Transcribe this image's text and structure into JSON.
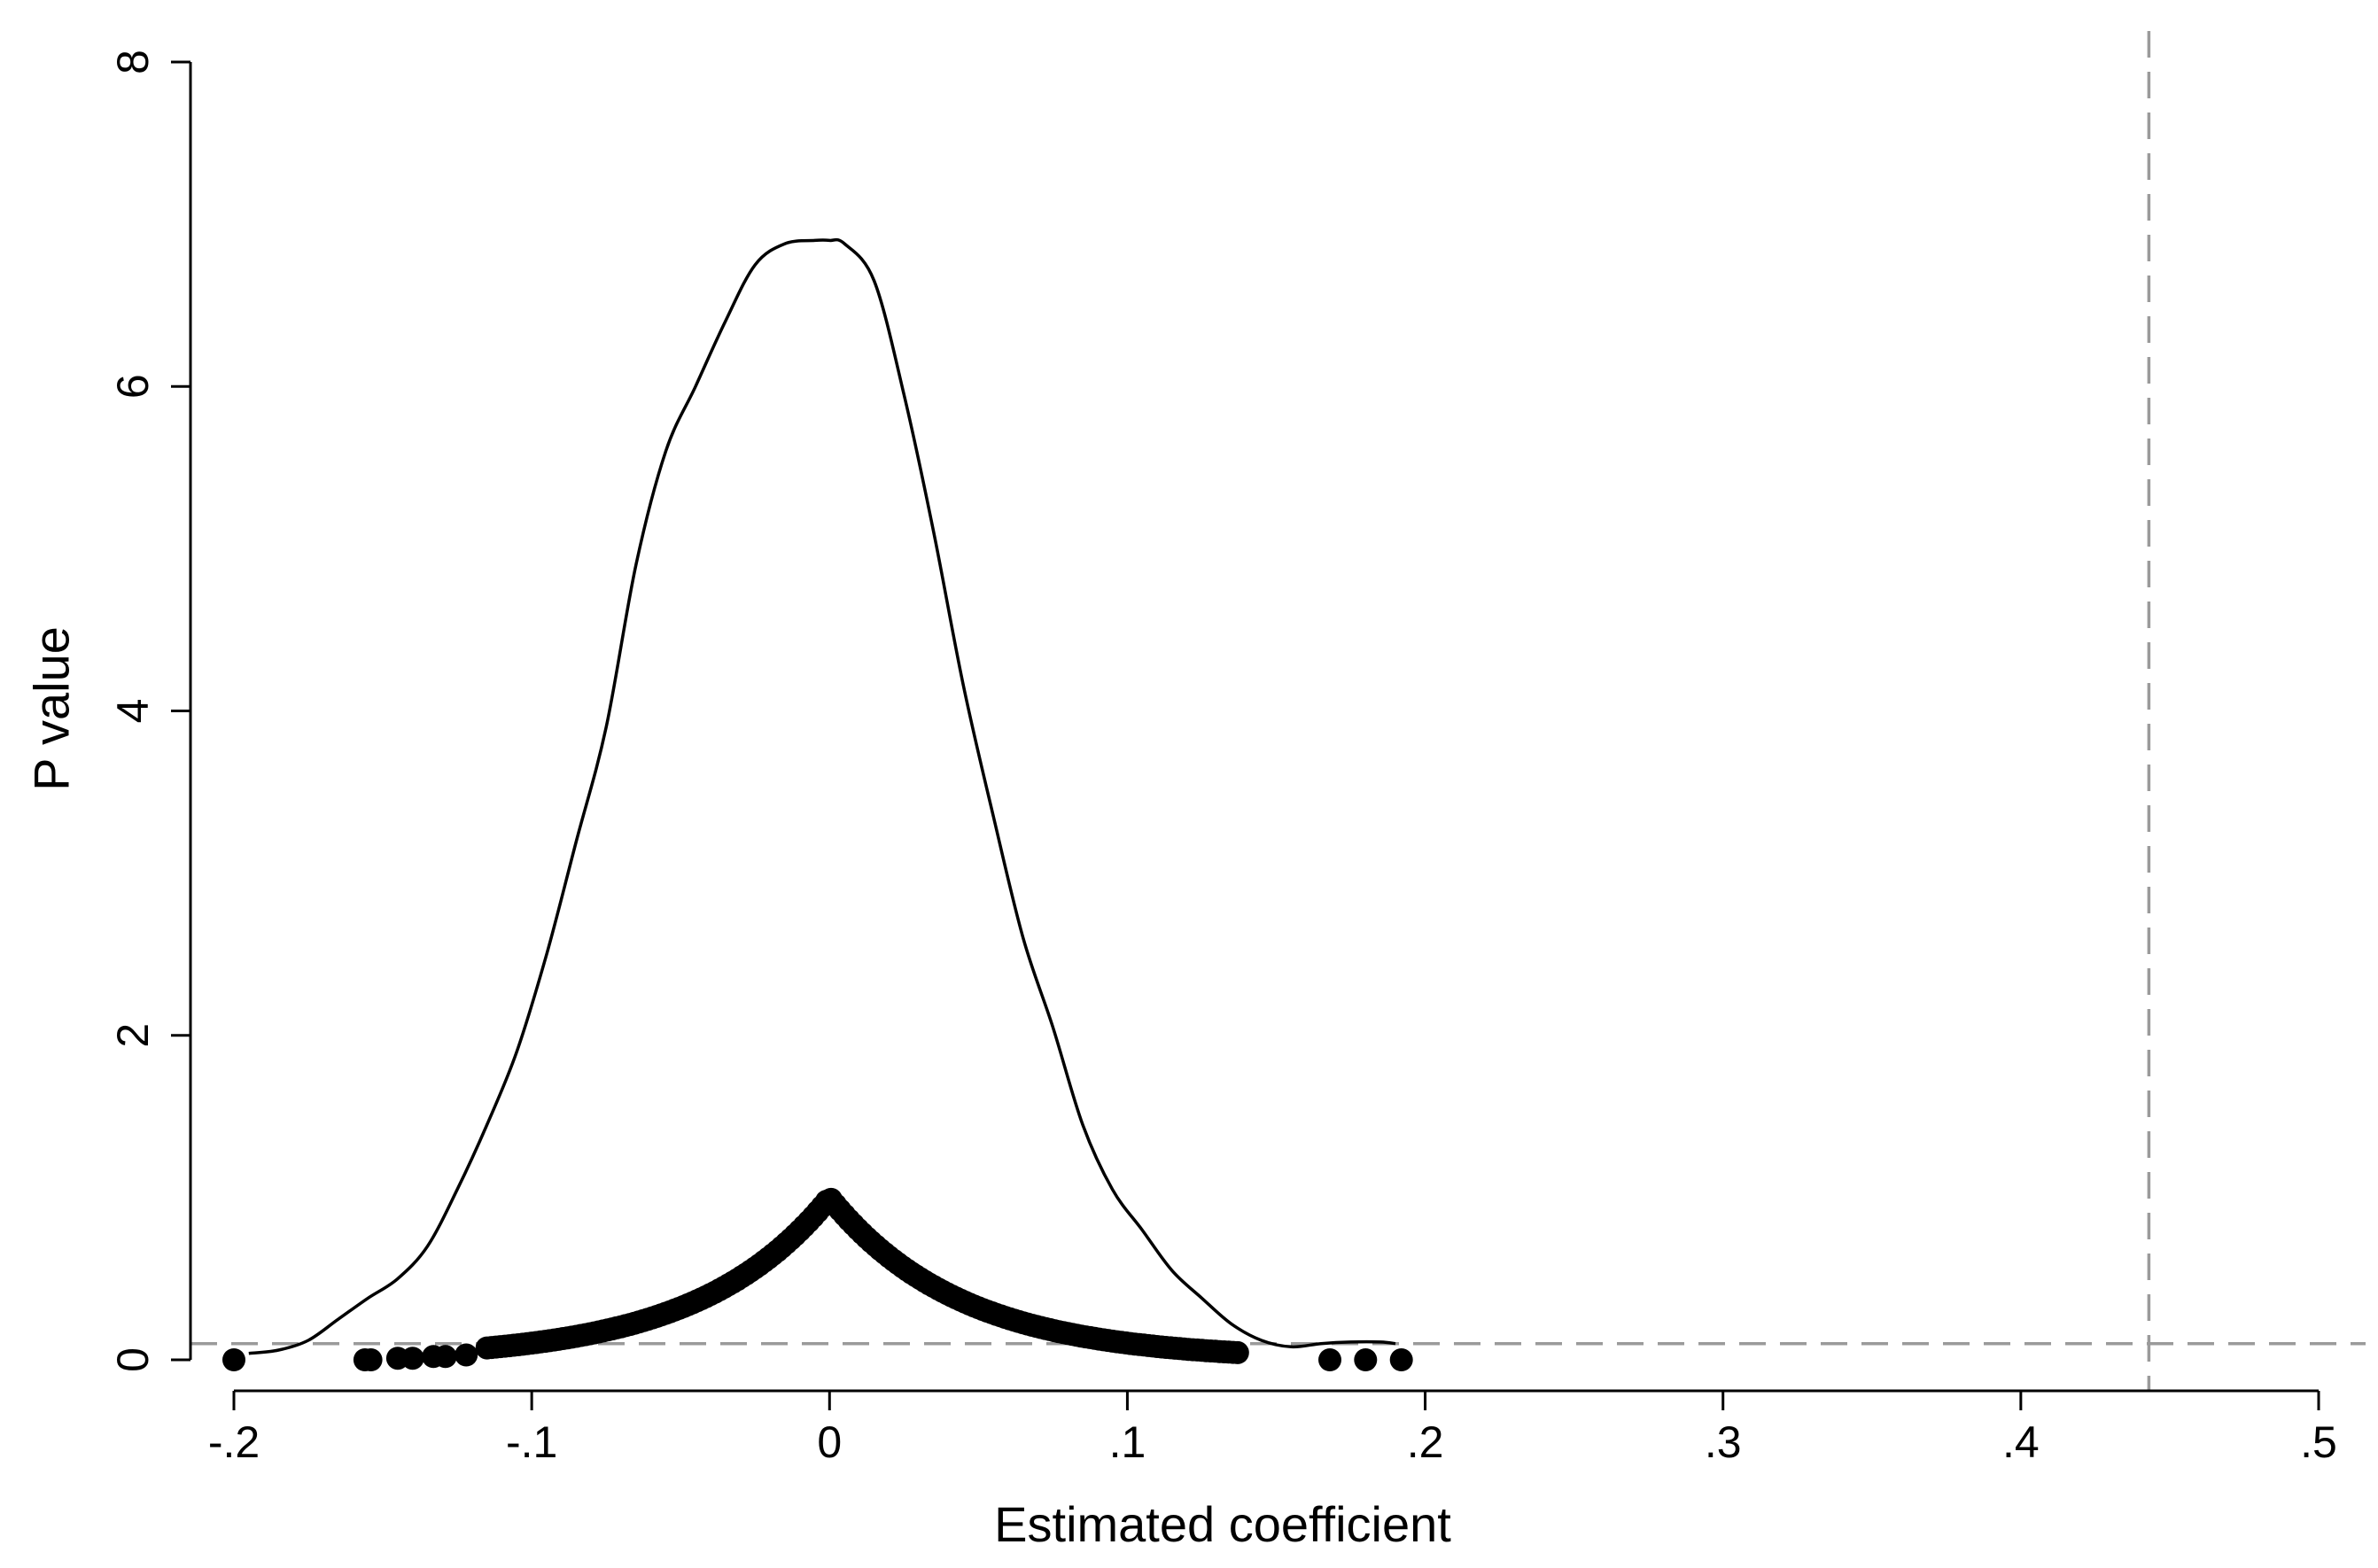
{
  "chart_data": {
    "type": "scatter",
    "title": "",
    "xlabel": "Estimated coefficient",
    "ylabel": "P value",
    "xlim": [
      -0.215,
      0.51
    ],
    "ylim": [
      -0.2,
      8.5
    ],
    "x_ticks": [
      {
        "value": -0.2,
        "label": "-.2"
      },
      {
        "value": -0.1,
        "label": "-.1"
      },
      {
        "value": 0,
        "label": "0"
      },
      {
        "value": 0.1,
        "label": ".1"
      },
      {
        "value": 0.2,
        "label": ".2"
      },
      {
        "value": 0.3,
        "label": ".3"
      },
      {
        "value": 0.4,
        "label": ".4"
      },
      {
        "value": 0.5,
        "label": ".5"
      }
    ],
    "y_ticks": [
      {
        "value": 0,
        "label": "0"
      },
      {
        "value": 2,
        "label": "2"
      },
      {
        "value": 4,
        "label": "4"
      },
      {
        "value": 6,
        "label": "6"
      },
      {
        "value": 8,
        "label": "8"
      }
    ],
    "reference_lines": {
      "vertical_x": 0.443,
      "horizontal_y": 0.1,
      "color": "#9a9a9a",
      "style": "dashed"
    },
    "density_curve": {
      "color": "#000000",
      "x": [
        -0.195,
        -0.185,
        -0.175,
        -0.165,
        -0.155,
        -0.145,
        -0.135,
        -0.125,
        -0.115,
        -0.105,
        -0.095,
        -0.085,
        -0.075,
        -0.065,
        -0.055,
        -0.045,
        -0.035,
        -0.025,
        -0.015,
        -0.005,
        0,
        0.005,
        0.015,
        0.025,
        0.035,
        0.045,
        0.055,
        0.065,
        0.075,
        0.085,
        0.095,
        0.105,
        0.115,
        0.125,
        0.135,
        0.145,
        0.155,
        0.165,
        0.175,
        0.185,
        0.19
      ],
      "y": [
        0.04,
        0.06,
        0.12,
        0.25,
        0.38,
        0.5,
        0.7,
        1.05,
        1.45,
        1.9,
        2.5,
        3.2,
        3.9,
        4.9,
        5.6,
        6.0,
        6.4,
        6.75,
        6.88,
        6.9,
        6.9,
        6.88,
        6.65,
        5.95,
        5.1,
        4.15,
        3.35,
        2.6,
        2.05,
        1.45,
        1.05,
        0.8,
        0.55,
        0.38,
        0.22,
        0.12,
        0.08,
        0.1,
        0.11,
        0.11,
        0.1
      ],
      "smooth": true
    },
    "scatter_points": {
      "color": "#000000",
      "dense_band": {
        "x_range": [
          -0.115,
          0.138
        ],
        "peak_x": 0,
        "peak_y": 1.0,
        "note": "points trace p-value curve p = exp(-|x|/0.044)"
      },
      "isolated": [
        {
          "x": -0.2,
          "y": 0.0
        },
        {
          "x": -0.156,
          "y": 0.0
        },
        {
          "x": -0.154,
          "y": 0.0
        },
        {
          "x": -0.145,
          "y": 0.01
        },
        {
          "x": -0.14,
          "y": 0.01
        },
        {
          "x": -0.133,
          "y": 0.02
        },
        {
          "x": -0.129,
          "y": 0.02
        },
        {
          "x": -0.122,
          "y": 0.03
        },
        {
          "x": 0.168,
          "y": 0.0
        },
        {
          "x": 0.18,
          "y": 0.0
        },
        {
          "x": 0.192,
          "y": 0.0
        }
      ]
    },
    "grid": false,
    "legend": "none"
  }
}
